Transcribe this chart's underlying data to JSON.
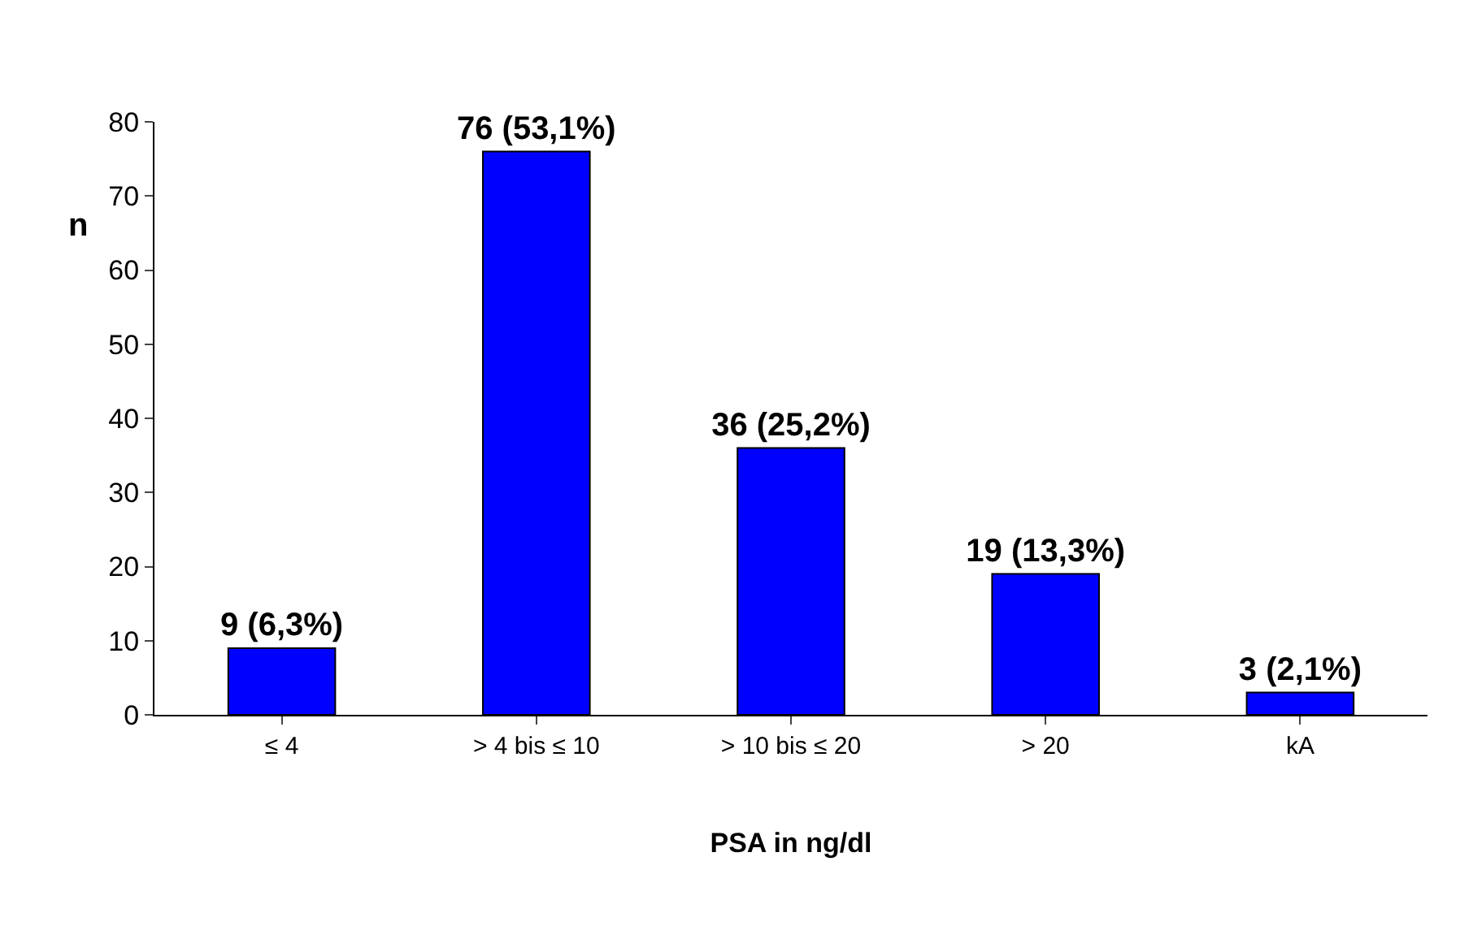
{
  "chart_data": {
    "type": "bar",
    "xlabel": "PSA in ng/dl",
    "ylabel": "n",
    "categories": [
      "≤ 4",
      "> 4 bis ≤ 10",
      "> 10 bis ≤ 20",
      "> 20",
      "kA"
    ],
    "values": [
      9,
      76,
      36,
      19,
      3
    ],
    "value_labels": [
      "9 (6,3%)",
      "76 (53,1%)",
      "36 (25,2%)",
      "19 (13,3%)",
      "3 (2,1%)"
    ],
    "color": "#0000ff",
    "ylim": [
      0,
      80
    ],
    "yticks": [
      0,
      10,
      20,
      30,
      40,
      50,
      60,
      70,
      80
    ],
    "legend": false
  }
}
